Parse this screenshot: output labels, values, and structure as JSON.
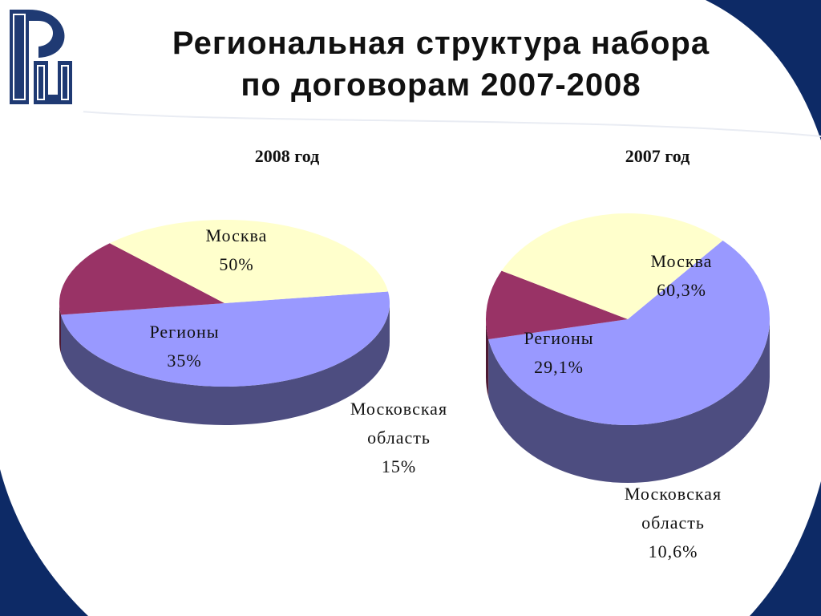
{
  "slide": {
    "title_line1": "Региональная структура набора",
    "title_line2": "по договорам 2007-2008",
    "accent_color": "#0d2a66"
  },
  "chart_data": [
    {
      "type": "pie",
      "title": "2008 год",
      "categories": [
        "Москва",
        "Московская область",
        "Регионы"
      ],
      "values": [
        50,
        15,
        35
      ],
      "colors": [
        "#9999ff",
        "#993366",
        "#ffffcc"
      ],
      "labels": [
        {
          "name_lines": [
            "Москва"
          ],
          "value": "50%"
        },
        {
          "name_lines": [
            "Московская",
            "область"
          ],
          "value": "15%"
        },
        {
          "name_lines": [
            "Регионы"
          ],
          "value": "35%"
        }
      ]
    },
    {
      "type": "pie",
      "title": "2007 год",
      "categories": [
        "Москва",
        "Московская область",
        "Регионы"
      ],
      "values": [
        60.3,
        10.6,
        29.1
      ],
      "colors": [
        "#9999ff",
        "#993366",
        "#ffffcc"
      ],
      "labels": [
        {
          "name_lines": [
            "Москва"
          ],
          "value": "60,3%"
        },
        {
          "name_lines": [
            "Московская",
            "область"
          ],
          "value": "10,6%"
        },
        {
          "name_lines": [
            "Регионы"
          ],
          "value": "29,1%"
        }
      ]
    }
  ]
}
